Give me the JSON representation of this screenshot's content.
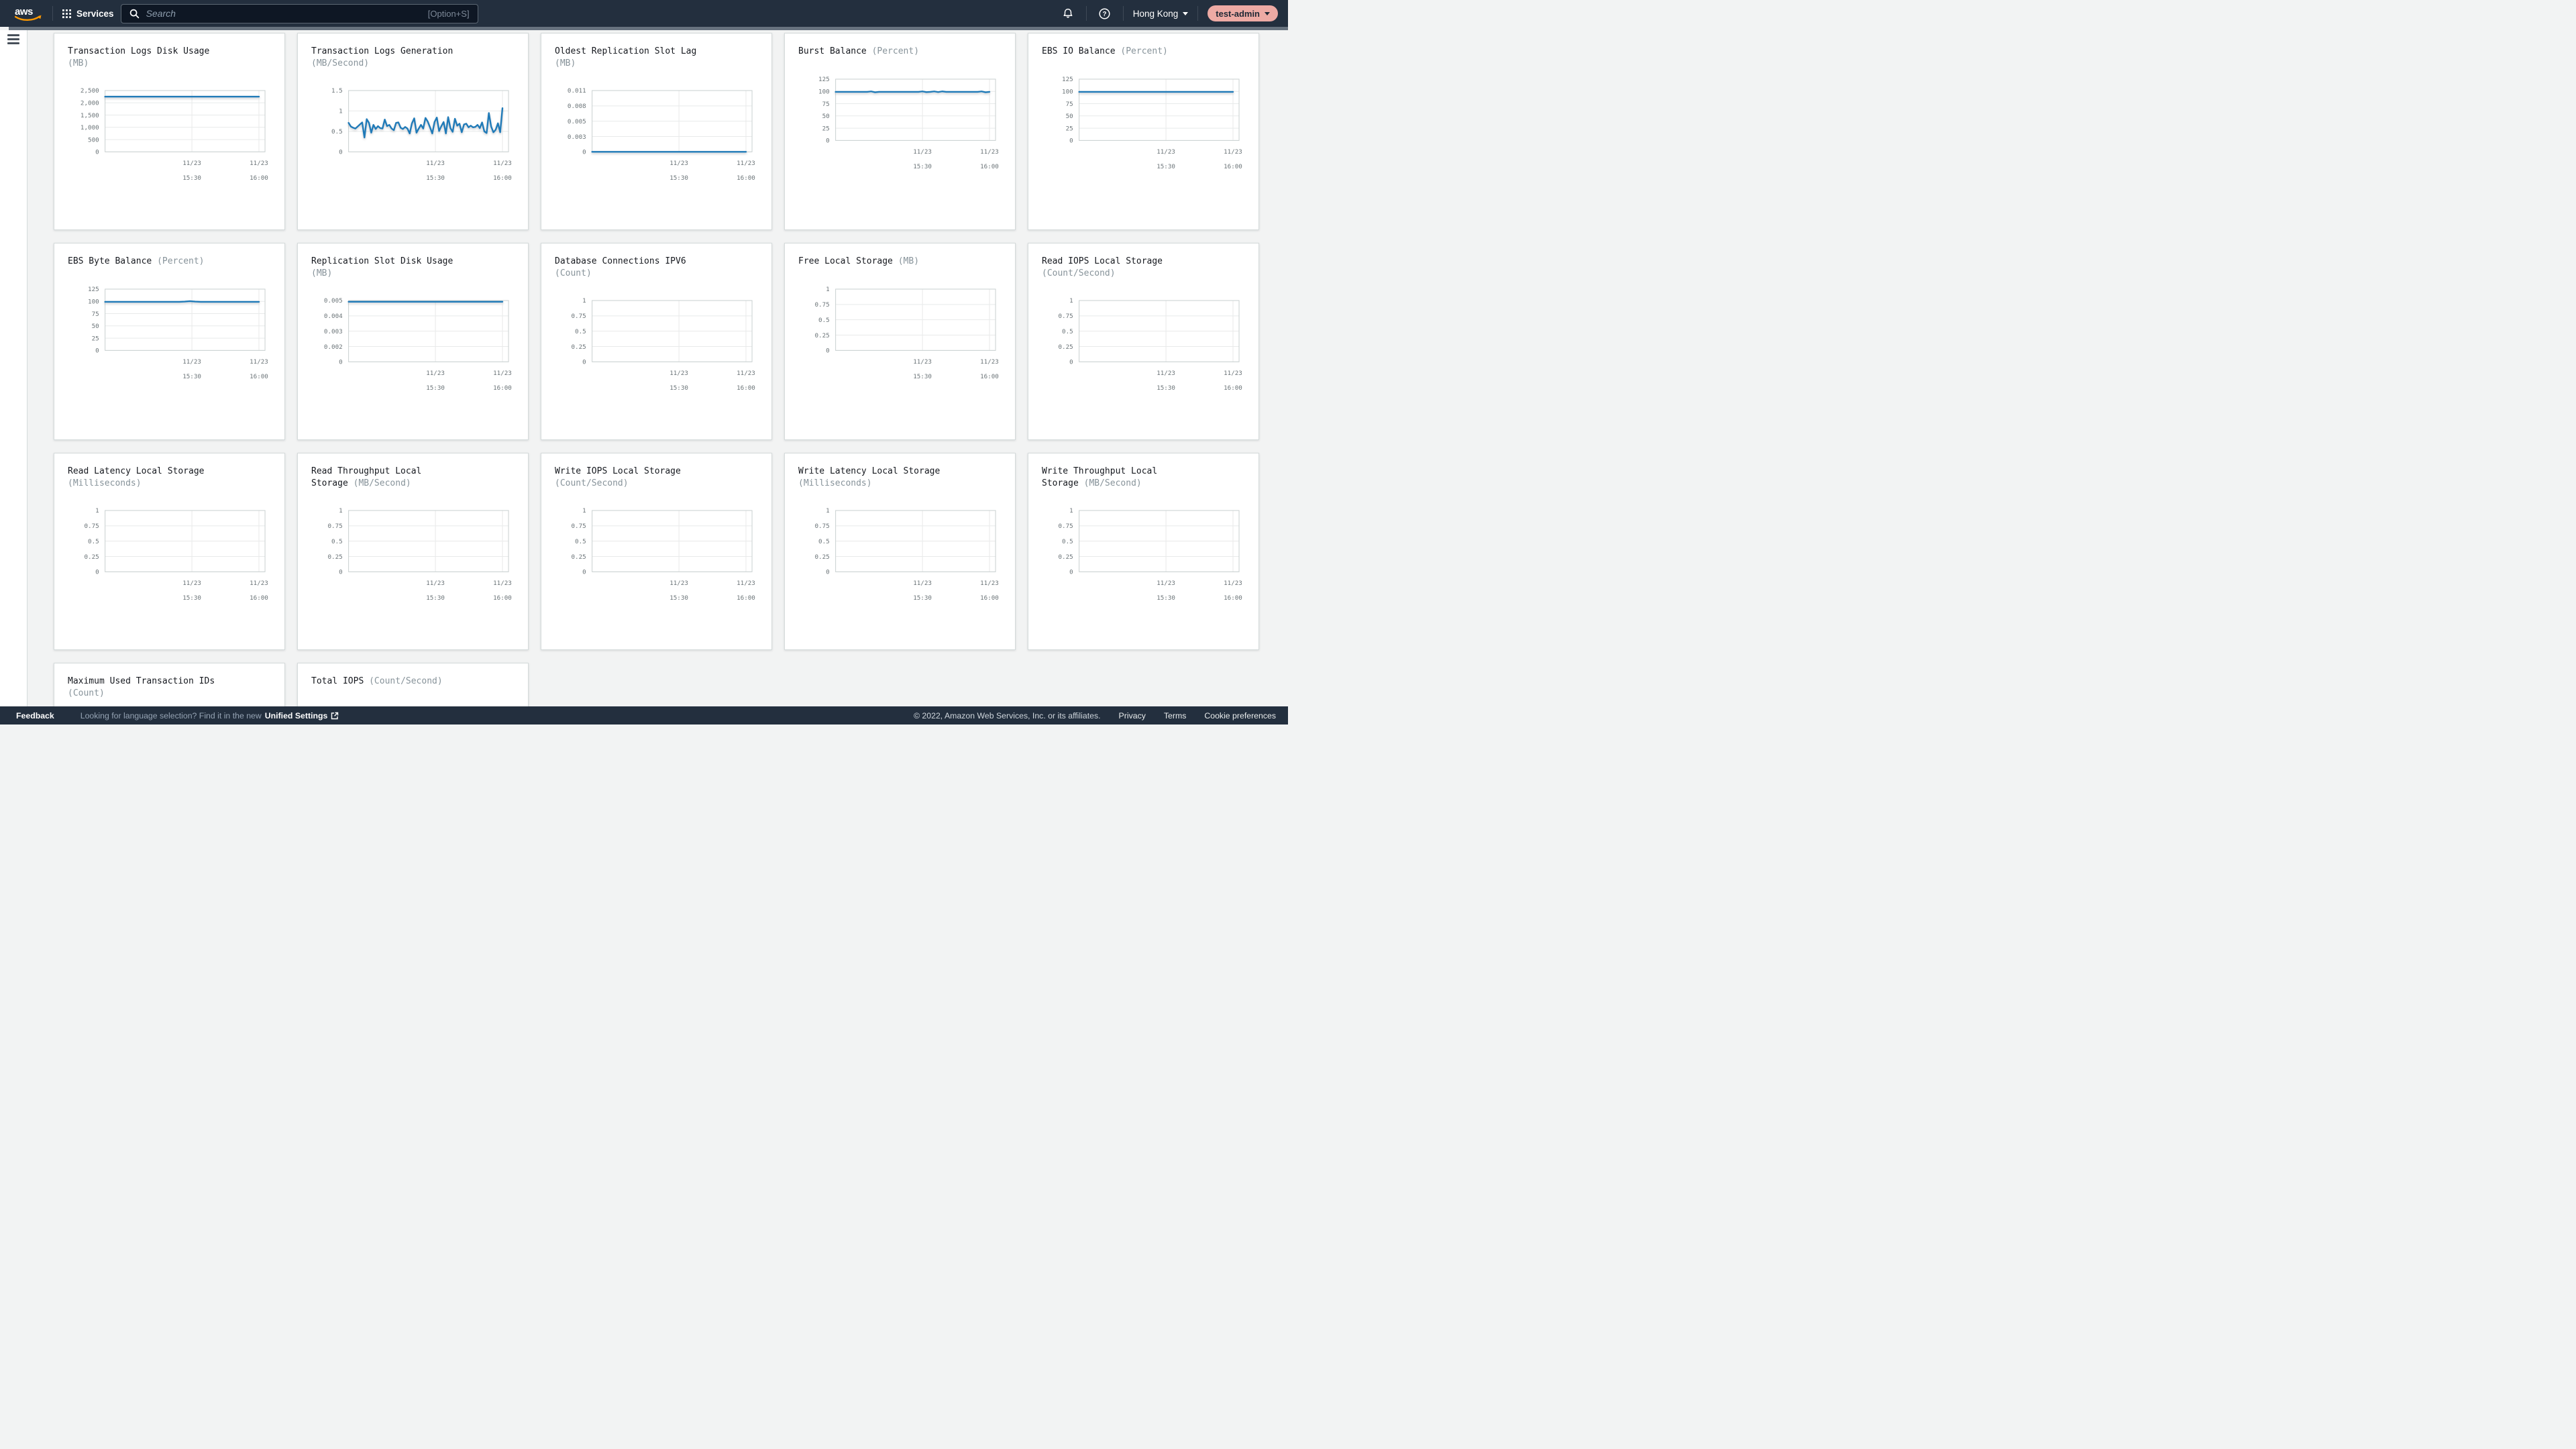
{
  "nav": {
    "logo": "aws",
    "services_label": "Services",
    "search_placeholder": "Search",
    "search_shortcut": "[Option+S]",
    "region": "Hong Kong",
    "account": "test-admin"
  },
  "colors": {
    "nav_bg": "#232f3e",
    "content_bg": "#f2f3f3",
    "line_blue": "#1f7ab8",
    "logo_orange": "#ff9900",
    "account_badge_bg": "#edaaa4"
  },
  "footer": {
    "feedback": "Feedback",
    "language_hint": "Looking for language selection? Find it in the new",
    "language_link": "Unified Settings",
    "copyright": "© 2022, Amazon Web Services, Inc. or its affiliates.",
    "privacy": "Privacy",
    "terms": "Terms",
    "cookie_preferences": "Cookie preferences"
  },
  "chart_data": [
    {
      "type": "line",
      "title": "Transaction Logs Disk Usage",
      "unit": "(MB)",
      "ylim": [
        0,
        2500
      ],
      "ymax": 2500,
      "yticks": [
        "2,500",
        "2,000",
        "1,500",
        "1,000",
        "500",
        "0"
      ],
      "xticks": [
        "11/23 15:30",
        "11/23 16:00"
      ],
      "series": [
        2250,
        2250
      ]
    },
    {
      "type": "line",
      "title": "Transaction Logs Generation",
      "unit": "(MB/Second)",
      "ylim": [
        0,
        1.5
      ],
      "ymax": 1.5,
      "yticks": [
        "1.5",
        "1",
        "0.5",
        "0"
      ],
      "xticks": [
        "11/23 15:30",
        "11/23 16:00"
      ],
      "series": [
        0.71,
        0.62,
        0.59,
        0.57,
        0.62,
        0.67,
        0.72,
        0.35,
        0.8,
        0.71,
        0.47,
        0.66,
        0.56,
        0.63,
        0.58,
        0.57,
        0.79,
        0.63,
        0.66,
        0.57,
        0.53,
        0.71,
        0.72,
        0.59,
        0.56,
        0.61,
        0.57,
        0.45,
        0.7,
        0.82,
        0.47,
        0.57,
        0.66,
        0.57,
        0.83,
        0.74,
        0.6,
        0.45,
        0.73,
        0.84,
        0.51,
        0.63,
        0.73,
        0.45,
        0.85,
        0.58,
        0.49,
        0.81,
        0.64,
        0.69,
        0.48,
        0.67,
        0.69,
        0.6,
        0.64,
        0.6,
        0.61,
        0.66,
        0.58,
        0.72,
        0.5,
        0.46,
        0.95,
        0.62,
        0.48,
        0.54,
        0.7,
        0.48,
        1.07
      ]
    },
    {
      "type": "line",
      "title": "Oldest Replication Slot Lag",
      "unit": "(MB)",
      "ylim": [
        0,
        0.011
      ],
      "ymax": 0.011,
      "yticks": [
        "0.011",
        "0.008",
        "0.005",
        "0.003",
        "0"
      ],
      "xticks": [
        "11/23 15:30",
        "11/23 16:00"
      ],
      "series": [
        0,
        0
      ]
    },
    {
      "type": "line",
      "title": "Burst Balance",
      "unit": "(Percent)",
      "ylim": [
        0,
        125
      ],
      "ymax": 125,
      "yticks": [
        "125",
        "100",
        "75",
        "50",
        "25",
        "0"
      ],
      "xticks": [
        "11/23 15:30",
        "11/23 16:00"
      ],
      "series": [
        99,
        99,
        99,
        99,
        99,
        99,
        99,
        99,
        99,
        100,
        98.2,
        99,
        99,
        99,
        99,
        99,
        99,
        99,
        99,
        99,
        99,
        99,
        100,
        98.5,
        99,
        100,
        98.6,
        100,
        99,
        99,
        99,
        99,
        99,
        99,
        99,
        99,
        99,
        100,
        98.3,
        99
      ]
    },
    {
      "type": "line",
      "title": "EBS IO Balance",
      "unit": "(Percent)",
      "ylim": [
        0,
        125
      ],
      "ymax": 125,
      "yticks": [
        "125",
        "100",
        "75",
        "50",
        "25",
        "0"
      ],
      "xticks": [
        "11/23 15:30",
        "11/23 16:00"
      ],
      "series": [
        99,
        99
      ]
    },
    {
      "type": "line",
      "title": "EBS Byte Balance",
      "unit": "(Percent)",
      "ylim": [
        0,
        125
      ],
      "ymax": 125,
      "yticks": [
        "125",
        "100",
        "75",
        "50",
        "25",
        "0"
      ],
      "xticks": [
        "11/23 15:30",
        "11/23 16:00"
      ],
      "series": [
        99,
        99,
        99,
        99,
        99,
        99,
        99,
        99,
        99,
        99,
        99,
        99,
        99,
        99,
        99,
        99.6,
        100.4,
        99.6,
        99,
        99,
        99,
        99,
        99,
        99,
        99,
        99,
        99,
        99,
        99,
        99
      ]
    },
    {
      "type": "line",
      "title": "Replication Slot Disk Usage",
      "unit": "(MB)",
      "ylim": [
        0,
        0.005
      ],
      "ymax": 0.005,
      "yticks": [
        "0.005",
        "0.004",
        "0.003",
        "0.002",
        "0"
      ],
      "xticks": [
        "11/23 15:30",
        "11/23 16:00"
      ],
      "series": [
        0.0049,
        0.0049
      ]
    },
    {
      "type": "line",
      "title": "Database Connections IPV6",
      "unit": "(Count)",
      "ylim": [
        0,
        1
      ],
      "ymax": 1,
      "yticks": [
        "1",
        "0.75",
        "0.5",
        "0.25",
        "0"
      ],
      "xticks": [
        "11/23 15:30",
        "11/23 16:00"
      ],
      "series": []
    },
    {
      "type": "line",
      "title": "Free Local Storage",
      "unit": "(MB)",
      "ylim": [
        0,
        1
      ],
      "ymax": 1,
      "yticks": [
        "1",
        "0.75",
        "0.5",
        "0.25",
        "0"
      ],
      "xticks": [
        "11/23 15:30",
        "11/23 16:00"
      ],
      "series": []
    },
    {
      "type": "line",
      "title": "Read IOPS Local Storage",
      "unit": "(Count/Second)",
      "ylim": [
        0,
        1
      ],
      "ymax": 1,
      "yticks": [
        "1",
        "0.75",
        "0.5",
        "0.25",
        "0"
      ],
      "xticks": [
        "11/23 15:30",
        "11/23 16:00"
      ],
      "series": []
    },
    {
      "type": "line",
      "title": "Read Latency Local Storage",
      "unit": "(Milliseconds)",
      "ylim": [
        0,
        1
      ],
      "ymax": 1,
      "yticks": [
        "1",
        "0.75",
        "0.5",
        "0.25",
        "0"
      ],
      "xticks": [
        "11/23 15:30",
        "11/23 16:00"
      ],
      "series": []
    },
    {
      "type": "line",
      "title": "Read Throughput Local Storage",
      "unit": "(MB/Second)",
      "ylim": [
        0,
        1
      ],
      "ymax": 1,
      "yticks": [
        "1",
        "0.75",
        "0.5",
        "0.25",
        "0"
      ],
      "xticks": [
        "11/23 15:30",
        "11/23 16:00"
      ],
      "series": []
    },
    {
      "type": "line",
      "title": "Write IOPS Local Storage",
      "unit": "(Count/Second)",
      "ylim": [
        0,
        1
      ],
      "ymax": 1,
      "yticks": [
        "1",
        "0.75",
        "0.5",
        "0.25",
        "0"
      ],
      "xticks": [
        "11/23 15:30",
        "11/23 16:00"
      ],
      "series": []
    },
    {
      "type": "line",
      "title": "Write Latency Local Storage",
      "unit": "(Milliseconds)",
      "ylim": [
        0,
        1
      ],
      "ymax": 1,
      "yticks": [
        "1",
        "0.75",
        "0.5",
        "0.25",
        "0"
      ],
      "xticks": [
        "11/23 15:30",
        "11/23 16:00"
      ],
      "series": []
    },
    {
      "type": "line",
      "title": "Write Throughput Local Storage",
      "unit": "(MB/Second)",
      "ylim": [
        0,
        1
      ],
      "ymax": 1,
      "yticks": [
        "1",
        "0.75",
        "0.5",
        "0.25",
        "0"
      ],
      "xticks": [
        "11/23 15:30",
        "11/23 16:00"
      ],
      "series": []
    },
    {
      "type": "line",
      "title": "Maximum Used Transaction IDs",
      "unit": "(Count)",
      "clipped": true
    },
    {
      "type": "line",
      "title": "Total IOPS",
      "unit": "(Count/Second)",
      "clipped": true
    }
  ]
}
